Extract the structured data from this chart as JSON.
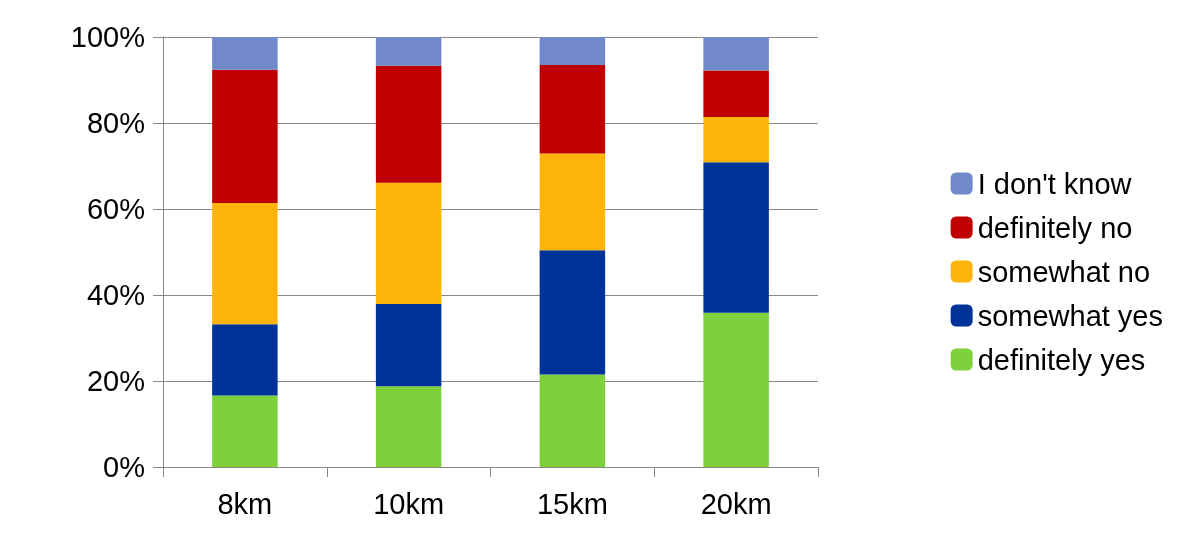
{
  "chart_data": {
    "type": "bar",
    "stacked": true,
    "categories": [
      "8km",
      "10km",
      "15km",
      "20km"
    ],
    "series": [
      {
        "name": "definitely yes",
        "color": "#7fd13b",
        "values": [
          16.6,
          18.8,
          21.5,
          35.9
        ]
      },
      {
        "name": "somewhat yes",
        "color": "#003399",
        "values": [
          16.6,
          19.1,
          28.9,
          35.0
        ]
      },
      {
        "name": "somewhat no",
        "color": "#ffb40a",
        "values": [
          28.2,
          28.2,
          22.5,
          10.5
        ]
      },
      {
        "name": "definitely no",
        "color": "#c00000",
        "values": [
          31.0,
          27.2,
          20.6,
          10.8
        ]
      },
      {
        "name": "I don't know",
        "color": "#7189c9",
        "values": [
          7.6,
          6.7,
          6.5,
          7.8
        ]
      }
    ],
    "ylim": [
      0,
      100
    ],
    "yticks": [
      {
        "value": 0,
        "label": "0%"
      },
      {
        "value": 20,
        "label": "20%"
      },
      {
        "value": 40,
        "label": "40%"
      },
      {
        "value": 60,
        "label": "60%"
      },
      {
        "value": 80,
        "label": "80%"
      },
      {
        "value": 100,
        "label": "100%"
      }
    ],
    "grid": "y",
    "legend": "right"
  }
}
